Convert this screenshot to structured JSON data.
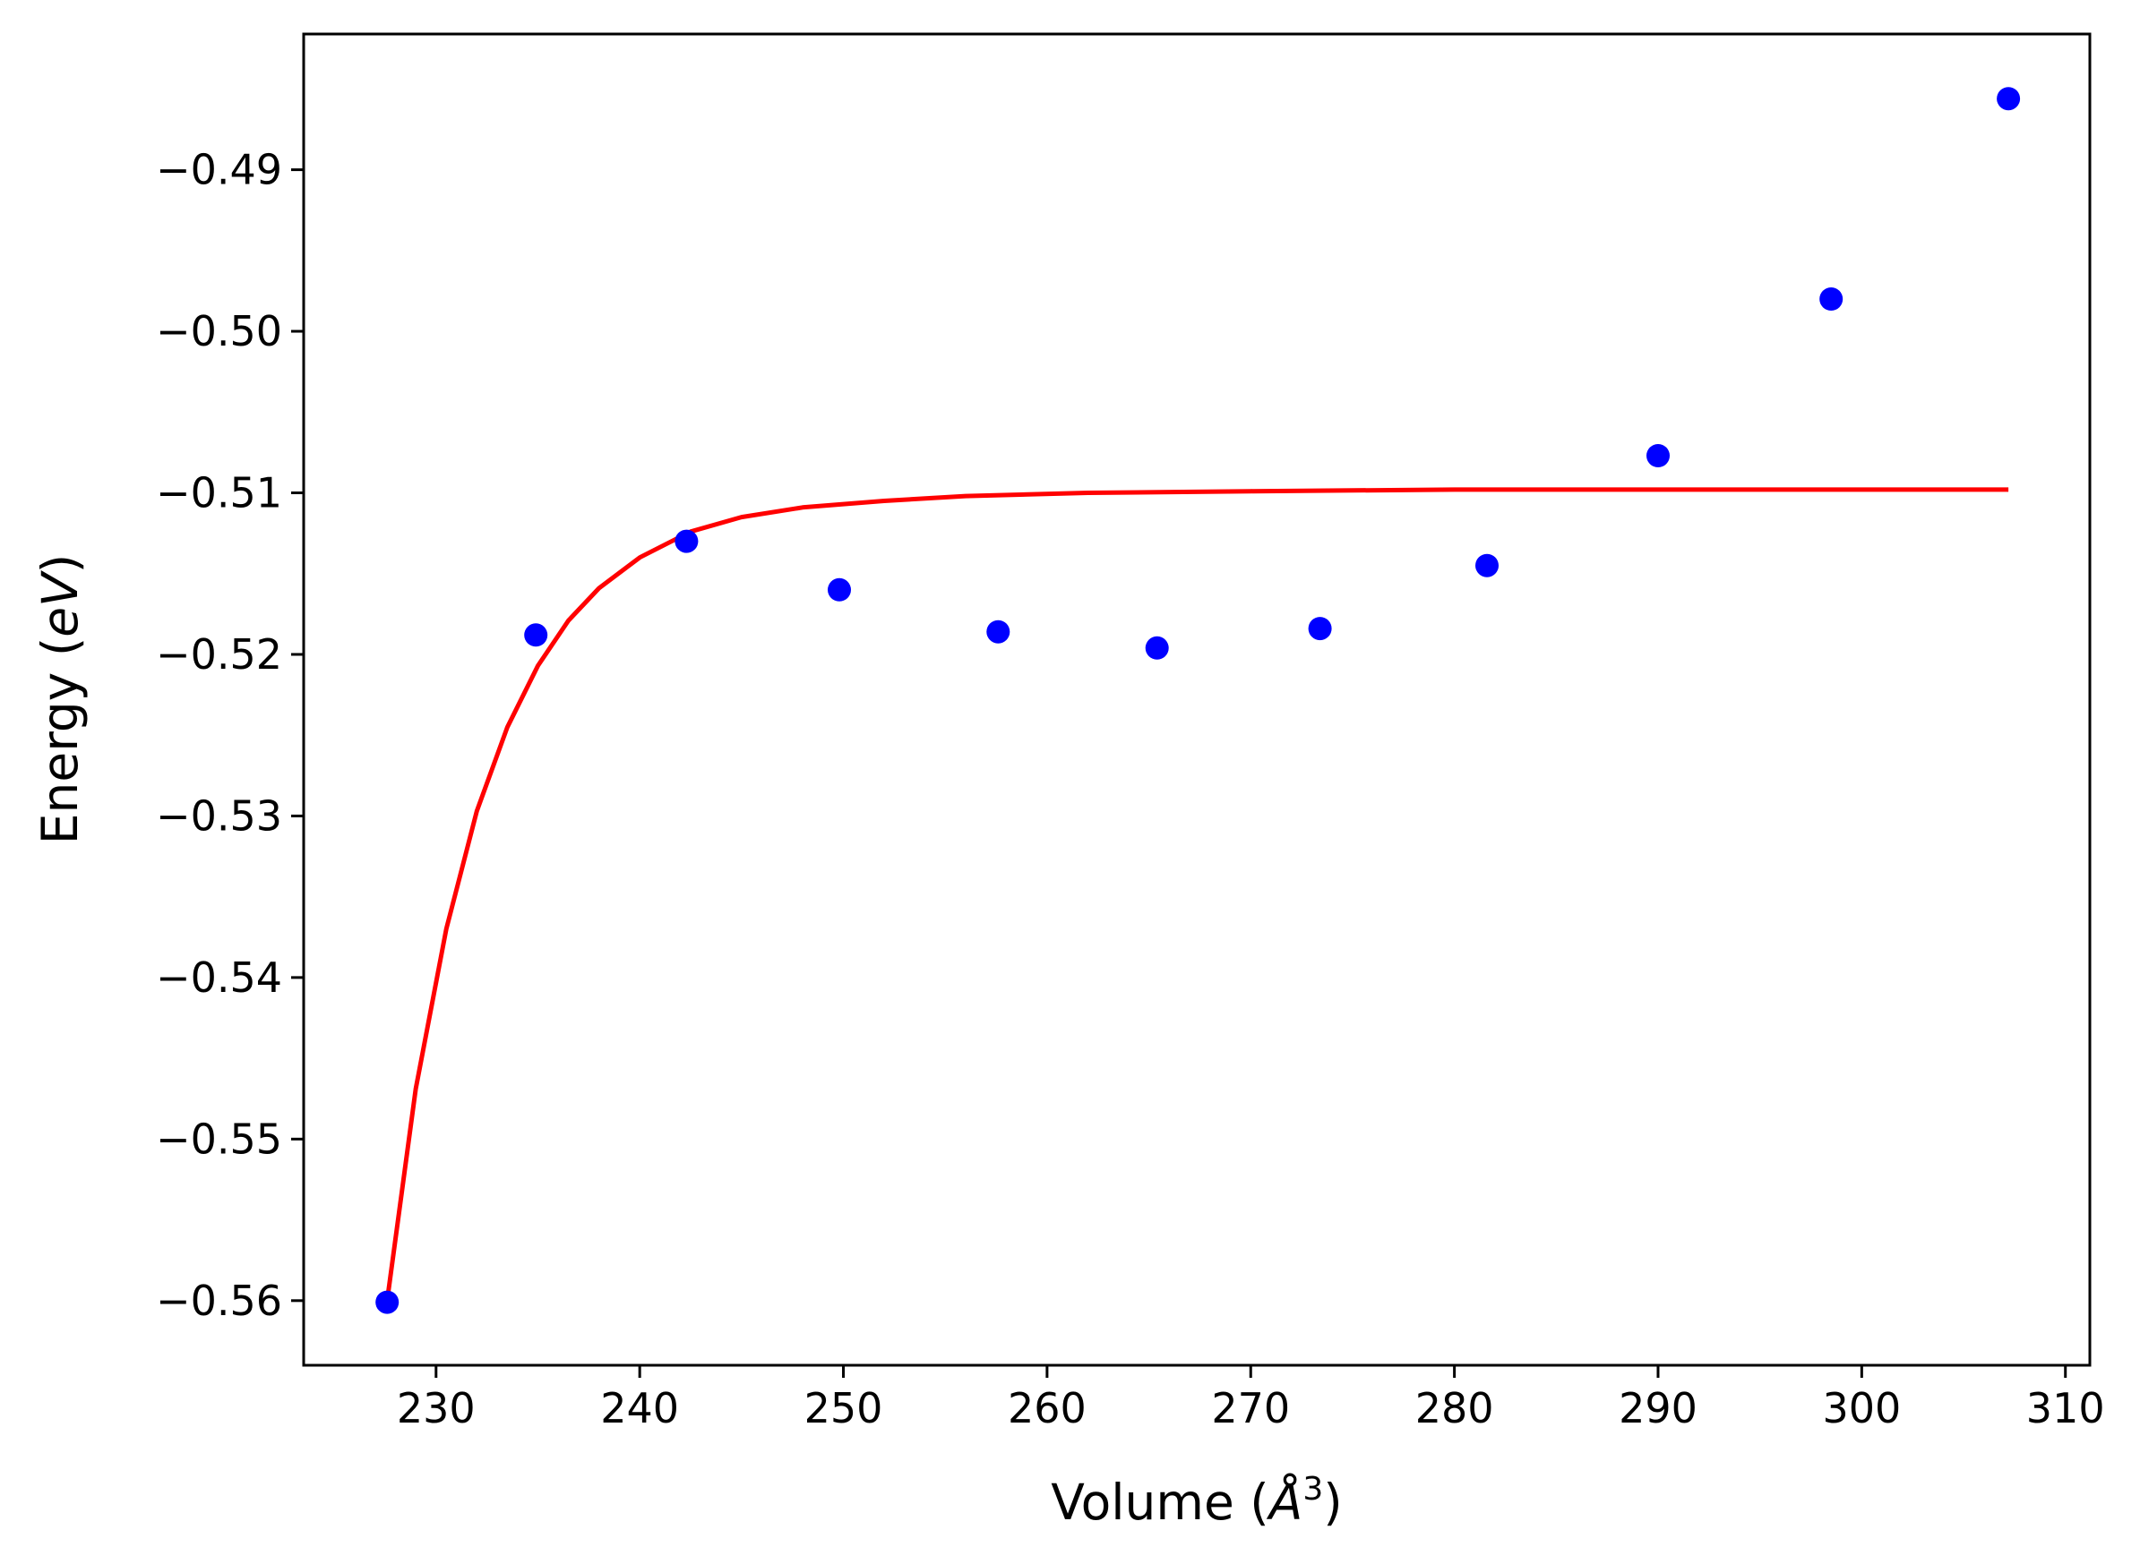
{
  "chart_data": {
    "type": "scatter",
    "title": "",
    "xlabel": {
      "pre": "Volume (",
      "sym": "Å",
      "sup": "3",
      "post": ")"
    },
    "ylabel": {
      "pre": "Energy (",
      "var": "eV",
      "post": ")"
    },
    "xlim": [
      223.5,
      311.2
    ],
    "ylim": [
      -0.564,
      -0.4816
    ],
    "xticks": [
      230,
      240,
      250,
      260,
      270,
      280,
      290,
      300,
      310
    ],
    "xtick_labels": [
      "230",
      "240",
      "250",
      "260",
      "270",
      "280",
      "290",
      "300",
      "310"
    ],
    "yticks": [
      -0.49,
      -0.5,
      -0.51,
      -0.52,
      -0.53,
      -0.54,
      -0.55,
      -0.56
    ],
    "ytick_labels": [
      "−0.49",
      "−0.50",
      "−0.51",
      "−0.52",
      "−0.53",
      "−0.54",
      "−0.55",
      "−0.56"
    ],
    "grid": false,
    "series": [
      {
        "kind": "points",
        "color": "#0000ff",
        "x": [
          227.6,
          234.9,
          242.3,
          249.8,
          257.6,
          265.4,
          273.4,
          281.6,
          290.0,
          298.5,
          307.2
        ],
        "y": [
          -0.5601,
          -0.5188,
          -0.513,
          -0.516,
          -0.5186,
          -0.5196,
          -0.5184,
          -0.5145,
          -0.5077,
          -0.498,
          -0.4856
        ]
      },
      {
        "kind": "line",
        "color": "#ff0000",
        "x": [
          227.6,
          229.0,
          230.5,
          232.0,
          233.5,
          235.0,
          236.5,
          238.0,
          240.0,
          242.5,
          245.0,
          248.0,
          252.0,
          256.0,
          262.0,
          270.0,
          280.0,
          290.0,
          300.0,
          307.2
        ],
        "y": [
          -0.56,
          -0.5469,
          -0.537,
          -0.5297,
          -0.5245,
          -0.5207,
          -0.5179,
          -0.5159,
          -0.514,
          -0.5124,
          -0.5115,
          -0.5109,
          -0.5105,
          -0.5102,
          -0.51,
          -0.5099,
          -0.5098,
          -0.5098,
          -0.5098,
          -0.5098
        ]
      }
    ]
  }
}
